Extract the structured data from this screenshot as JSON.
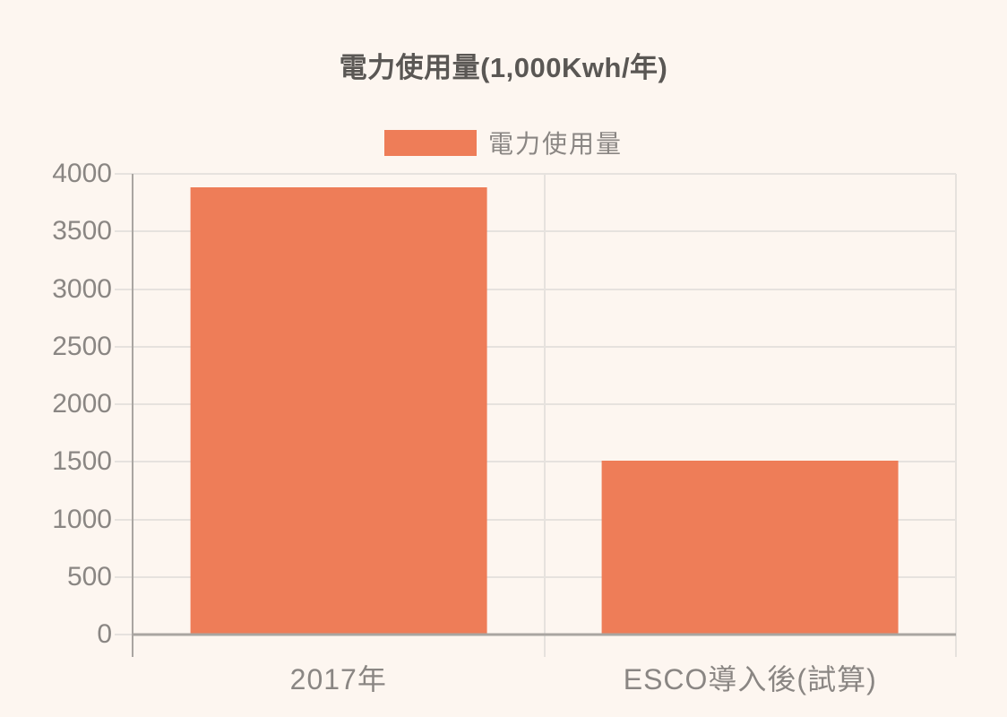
{
  "title": "電力使用量(1,000Kwh/年)",
  "legend": {
    "label": "電力使用量"
  },
  "colors": {
    "background": "#FDF6F0",
    "bar": "#EE7D58",
    "gridline": "#E6E2DE",
    "axis": "#A9A5A1",
    "tick_text": "#8A8683",
    "title_text": "#5A5754"
  },
  "chart_data": {
    "type": "bar",
    "title": "電力使用量(1,000Kwh/年)",
    "categories": [
      "2017年",
      "ESCO導入後(試算)"
    ],
    "series": [
      {
        "name": "電力使用量",
        "values": [
          3880,
          1510
        ]
      }
    ],
    "xlabel": "",
    "ylabel": "",
    "ylim": [
      0,
      4000
    ],
    "ytick_step": 500,
    "grid": true,
    "legend_position": "top",
    "bar_width_fraction": 0.72
  }
}
